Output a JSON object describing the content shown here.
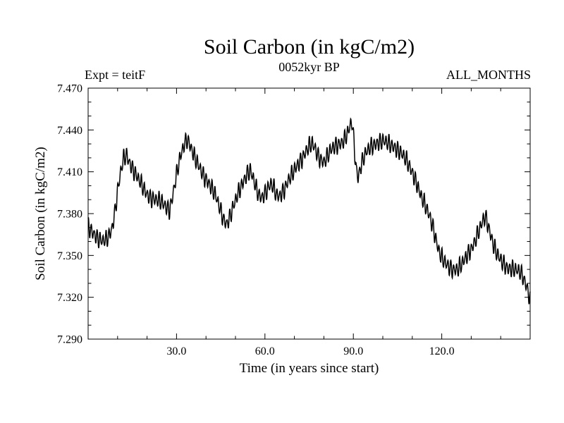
{
  "header": {
    "title": "Soil Carbon (in kgC/m2)",
    "subtitle": "0052kyr BP",
    "experiment_label": "Expt = teitF",
    "months_label": "ALL_MONTHS"
  },
  "chart_data": {
    "type": "line",
    "title": "Soil Carbon (in kgC/m2)",
    "subtitle": "0052kyr BP",
    "annotation_left": "Expt = teitF",
    "annotation_right": "ALL_MONTHS",
    "xlabel": "Time (in years since start)",
    "ylabel": "Soil Carbon (in kgC/m2)",
    "xlim": [
      0,
      150
    ],
    "ylim": [
      7.29,
      7.47
    ],
    "x_major_ticks": [
      30,
      60,
      90,
      120
    ],
    "x_major_tick_labels": [
      "30.0",
      "60.0",
      "90.0",
      "120.0"
    ],
    "x_minor_step": 10,
    "y_major_ticks": [
      7.29,
      7.32,
      7.35,
      7.38,
      7.41,
      7.44,
      7.47
    ],
    "y_major_tick_labels": [
      "7.290",
      "7.320",
      "7.350",
      "7.380",
      "7.410",
      "7.440",
      "7.470"
    ],
    "y_minor_step": 0.01,
    "grid": false,
    "legend": false,
    "line_color": "#000000",
    "frame_color": "#000000",
    "series": [
      {
        "name": "soil_carbon_monthly",
        "points_per_year": 12,
        "seasonal_amplitude": 0.0048,
        "amplitude_jitter": 0.0018,
        "noise_amplitude": 0.0012,
        "envelope": [
          [
            0,
            7.371
          ],
          [
            1,
            7.368
          ],
          [
            2,
            7.366
          ],
          [
            3,
            7.363
          ],
          [
            4,
            7.361
          ],
          [
            5,
            7.36
          ],
          [
            6,
            7.361
          ],
          [
            7,
            7.364
          ],
          [
            8,
            7.369
          ],
          [
            9,
            7.38
          ],
          [
            10,
            7.396
          ],
          [
            11,
            7.409
          ],
          [
            12,
            7.419
          ],
          [
            13,
            7.422
          ],
          [
            14,
            7.417
          ],
          [
            15,
            7.413
          ],
          [
            16,
            7.409
          ],
          [
            17,
            7.405
          ],
          [
            18,
            7.401
          ],
          [
            19,
            7.397
          ],
          [
            20,
            7.394
          ],
          [
            21,
            7.392
          ],
          [
            22,
            7.391
          ],
          [
            23,
            7.39
          ],
          [
            24,
            7.389
          ],
          [
            25,
            7.388
          ],
          [
            26,
            7.386
          ],
          [
            27,
            7.384
          ],
          [
            27.7,
            7.383
          ],
          [
            28.5,
            7.391
          ],
          [
            29.5,
            7.402
          ],
          [
            30.5,
            7.413
          ],
          [
            31.5,
            7.422
          ],
          [
            32.5,
            7.429
          ],
          [
            33.5,
            7.434
          ],
          [
            34.3,
            7.431
          ],
          [
            35,
            7.427
          ],
          [
            36,
            7.421
          ],
          [
            37,
            7.416
          ],
          [
            38,
            7.412
          ],
          [
            39,
            7.408
          ],
          [
            40,
            7.405
          ],
          [
            41,
            7.402
          ],
          [
            42,
            7.398
          ],
          [
            43,
            7.394
          ],
          [
            44,
            7.388
          ],
          [
            45,
            7.382
          ],
          [
            46,
            7.376
          ],
          [
            47,
            7.373
          ],
          [
            48,
            7.377
          ],
          [
            49,
            7.383
          ],
          [
            50,
            7.389
          ],
          [
            51,
            7.395
          ],
          [
            52,
            7.4
          ],
          [
            53,
            7.405
          ],
          [
            54,
            7.409
          ],
          [
            55,
            7.411
          ],
          [
            56,
            7.405
          ],
          [
            57,
            7.398
          ],
          [
            58,
            7.393
          ],
          [
            59,
            7.392
          ],
          [
            60,
            7.395
          ],
          [
            61,
            7.398
          ],
          [
            62,
            7.401
          ],
          [
            63,
            7.398
          ],
          [
            64,
            7.393
          ],
          [
            65,
            7.393
          ],
          [
            66,
            7.396
          ],
          [
            67,
            7.399
          ],
          [
            68,
            7.404
          ],
          [
            69,
            7.407
          ],
          [
            70,
            7.411
          ],
          [
            71,
            7.415
          ],
          [
            72,
            7.418
          ],
          [
            73,
            7.421
          ],
          [
            74,
            7.425
          ],
          [
            75,
            7.428
          ],
          [
            76,
            7.43
          ],
          [
            77,
            7.427
          ],
          [
            78,
            7.422
          ],
          [
            79,
            7.419
          ],
          [
            80,
            7.417
          ],
          [
            81,
            7.42
          ],
          [
            82,
            7.424
          ],
          [
            83,
            7.427
          ],
          [
            84,
            7.429
          ],
          [
            85,
            7.43
          ],
          [
            86,
            7.431
          ],
          [
            87,
            7.433
          ],
          [
            88,
            7.437
          ],
          [
            89,
            7.443
          ],
          [
            89.6,
            7.446
          ],
          [
            90.2,
            7.431
          ],
          [
            91,
            7.412
          ],
          [
            91.6,
            7.406
          ],
          [
            92.5,
            7.414
          ],
          [
            93.5,
            7.42
          ],
          [
            94.5,
            7.424
          ],
          [
            96,
            7.428
          ],
          [
            98,
            7.431
          ],
          [
            100,
            7.432
          ],
          [
            102,
            7.43
          ],
          [
            104,
            7.428
          ],
          [
            106,
            7.424
          ],
          [
            108,
            7.418
          ],
          [
            110,
            7.41
          ],
          [
            111.5,
            7.402
          ],
          [
            113,
            7.392
          ],
          [
            114.5,
            7.385
          ],
          [
            116,
            7.378
          ],
          [
            117,
            7.371
          ],
          [
            118,
            7.362
          ],
          [
            119,
            7.353
          ],
          [
            120,
            7.348
          ],
          [
            121,
            7.345
          ],
          [
            122.5,
            7.342
          ],
          [
            124,
            7.34
          ],
          [
            125.5,
            7.34
          ],
          [
            127,
            7.344
          ],
          [
            128,
            7.348
          ],
          [
            129,
            7.352
          ],
          [
            130,
            7.355
          ],
          [
            131,
            7.359
          ],
          [
            132,
            7.364
          ],
          [
            133,
            7.369
          ],
          [
            134,
            7.375
          ],
          [
            134.8,
            7.378
          ],
          [
            135.6,
            7.373
          ],
          [
            136.5,
            7.366
          ],
          [
            137.5,
            7.358
          ],
          [
            138.5,
            7.352
          ],
          [
            139.5,
            7.348
          ],
          [
            140.5,
            7.345
          ],
          [
            141.5,
            7.343
          ],
          [
            142.5,
            7.341
          ],
          [
            143.5,
            7.341
          ],
          [
            144.5,
            7.34
          ],
          [
            145.5,
            7.339
          ],
          [
            146.5,
            7.338
          ],
          [
            147.5,
            7.335
          ],
          [
            148.3,
            7.331
          ],
          [
            149,
            7.327
          ],
          [
            149.6,
            7.322
          ],
          [
            150,
            7.318
          ]
        ]
      }
    ]
  }
}
